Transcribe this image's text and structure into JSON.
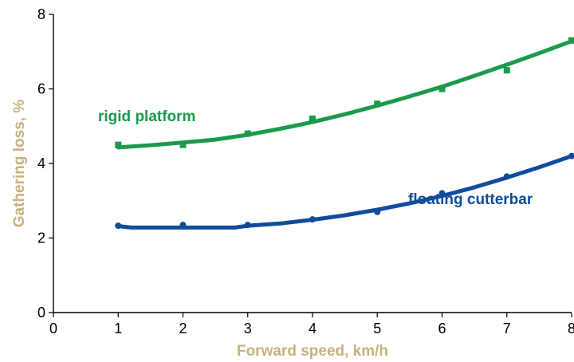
{
  "chart_data": {
    "type": "line",
    "xlabel": "Forward speed, km/h",
    "ylabel": "Gathering loss, %",
    "xlim": [
      0,
      8
    ],
    "ylim": [
      0,
      8
    ],
    "x_ticks": [
      "0",
      "1",
      "2",
      "3",
      "4",
      "5",
      "6",
      "7",
      "8"
    ],
    "y_ticks": [
      "0",
      "2",
      "4",
      "6",
      "8"
    ],
    "grid": false,
    "legend": "none",
    "colors": {
      "axis_title": "#c8b07c",
      "axis_line": "#000000"
    },
    "series": [
      {
        "name": "rigid platform",
        "color": "#1a9b4b",
        "marker": "square",
        "points": [
          {
            "x": 1,
            "y": 4.5
          },
          {
            "x": 2,
            "y": 4.5
          },
          {
            "x": 3,
            "y": 4.8
          },
          {
            "x": 4,
            "y": 5.2
          },
          {
            "x": 5,
            "y": 5.6
          },
          {
            "x": 6,
            "y": 6.0
          },
          {
            "x": 7,
            "y": 6.5
          },
          {
            "x": 8,
            "y": 7.3
          }
        ],
        "fit": [
          {
            "x": 1.0,
            "y": 4.43
          },
          {
            "x": 1.5,
            "y": 4.49
          },
          {
            "x": 2.0,
            "y": 4.56
          },
          {
            "x": 2.5,
            "y": 4.64
          },
          {
            "x": 3.0,
            "y": 4.77
          },
          {
            "x": 3.5,
            "y": 4.93
          },
          {
            "x": 4.0,
            "y": 5.11
          },
          {
            "x": 4.5,
            "y": 5.32
          },
          {
            "x": 5.0,
            "y": 5.55
          },
          {
            "x": 5.5,
            "y": 5.8
          },
          {
            "x": 6.0,
            "y": 6.06
          },
          {
            "x": 6.5,
            "y": 6.35
          },
          {
            "x": 7.0,
            "y": 6.65
          },
          {
            "x": 7.5,
            "y": 6.96
          },
          {
            "x": 8.0,
            "y": 7.28
          }
        ]
      },
      {
        "name": "floating cutterbar",
        "color": "#0f4c9c",
        "marker": "circle",
        "points": [
          {
            "x": 1,
            "y": 2.33
          },
          {
            "x": 2,
            "y": 2.35
          },
          {
            "x": 3,
            "y": 2.35
          },
          {
            "x": 4,
            "y": 2.5
          },
          {
            "x": 5,
            "y": 2.7
          },
          {
            "x": 6,
            "y": 3.2
          },
          {
            "x": 7,
            "y": 3.65
          },
          {
            "x": 8,
            "y": 4.2
          }
        ],
        "fit": [
          {
            "x": 1.0,
            "y": 2.32
          },
          {
            "x": 1.2,
            "y": 2.28
          },
          {
            "x": 2.0,
            "y": 2.28
          },
          {
            "x": 2.8,
            "y": 2.28
          },
          {
            "x": 3.0,
            "y": 2.33
          },
          {
            "x": 3.5,
            "y": 2.39
          },
          {
            "x": 4.0,
            "y": 2.49
          },
          {
            "x": 4.5,
            "y": 2.61
          },
          {
            "x": 5.0,
            "y": 2.76
          },
          {
            "x": 5.5,
            "y": 2.93
          },
          {
            "x": 6.0,
            "y": 3.13
          },
          {
            "x": 6.5,
            "y": 3.36
          },
          {
            "x": 7.0,
            "y": 3.62
          },
          {
            "x": 7.5,
            "y": 3.9
          },
          {
            "x": 8.0,
            "y": 4.2
          }
        ]
      }
    ]
  }
}
